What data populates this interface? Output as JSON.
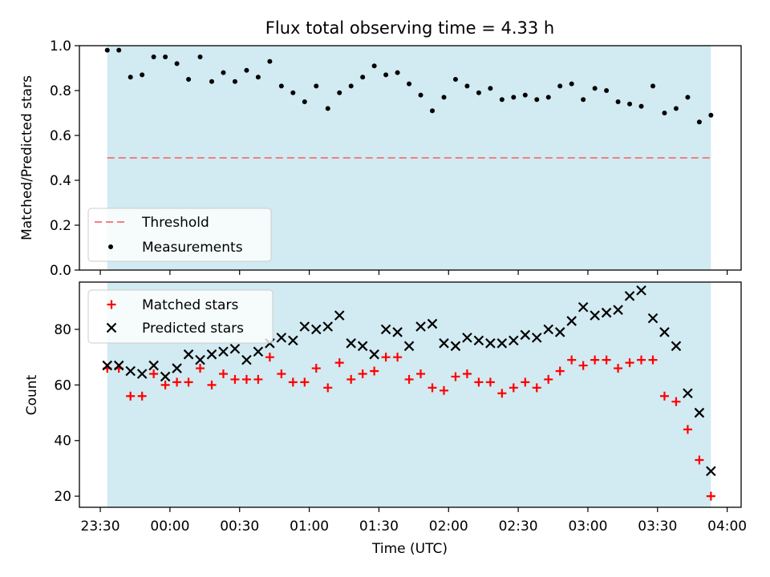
{
  "chart_data": [
    {
      "type": "scatter",
      "title": "Flux total observing time = 4.33 h",
      "ylabel": "Matched/Predicted stars",
      "ylim": [
        0,
        1.0
      ],
      "yticks": [
        "0.0",
        "0.2",
        "0.4",
        "0.6",
        "0.8",
        "1.0"
      ],
      "shaded_span": [
        "23:33",
        "03:53"
      ],
      "shade_color": "#add8e6",
      "threshold": 0.5,
      "threshold_color": "#f08080",
      "legend_position": "lower left",
      "series": [
        {
          "name": "Measurements",
          "color": "#000000",
          "marker": "dot",
          "values": [
            0.98,
            0.98,
            0.86,
            0.87,
            0.95,
            0.95,
            0.92,
            0.85,
            0.95,
            0.84,
            0.88,
            0.84,
            0.89,
            0.86,
            0.93,
            0.82,
            0.79,
            0.75,
            0.82,
            0.72,
            0.79,
            0.82,
            0.86,
            0.91,
            0.87,
            0.88,
            0.83,
            0.78,
            0.71,
            0.77,
            0.85,
            0.82,
            0.79,
            0.81,
            0.76,
            0.77,
            0.78,
            0.76,
            0.77,
            0.82,
            0.83,
            0.76,
            0.81,
            0.8,
            0.75,
            0.74,
            0.73,
            0.82,
            0.7,
            0.72,
            0.77,
            0.66,
            0.69
          ]
        }
      ],
      "legend": [
        "Threshold",
        "Measurements"
      ]
    },
    {
      "type": "scatter",
      "xlabel": "Time (UTC)",
      "ylabel": "Count",
      "ylim": [
        16,
        97
      ],
      "yticks": [
        "20",
        "40",
        "60",
        "80"
      ],
      "xticks": [
        "23:30",
        "00:00",
        "00:30",
        "01:00",
        "01:30",
        "02:00",
        "02:30",
        "03:00",
        "03:30",
        "04:00"
      ],
      "xlim": [
        "23:21",
        "04:06"
      ],
      "legend_position": "upper left",
      "x": [
        "23:33",
        "23:38",
        "23:43",
        "23:48",
        "23:53",
        "23:58",
        "00:03",
        "00:08",
        "00:13",
        "00:18",
        "00:23",
        "00:28",
        "00:33",
        "00:38",
        "00:43",
        "00:48",
        "00:53",
        "00:58",
        "01:03",
        "01:08",
        "01:13",
        "01:18",
        "01:23",
        "01:28",
        "01:33",
        "01:38",
        "01:43",
        "01:48",
        "01:53",
        "01:58",
        "02:03",
        "02:08",
        "02:13",
        "02:18",
        "02:23",
        "02:28",
        "02:33",
        "02:38",
        "02:43",
        "02:48",
        "02:53",
        "02:58",
        "03:03",
        "03:08",
        "03:13",
        "03:18",
        "03:23",
        "03:28",
        "03:33",
        "03:38",
        "03:43",
        "03:48",
        "03:53"
      ],
      "series": [
        {
          "name": "Matched stars",
          "color": "#ff0000",
          "marker": "plus",
          "values": [
            66,
            66,
            56,
            56,
            64,
            60,
            61,
            61,
            66,
            60,
            64,
            62,
            62,
            62,
            70,
            64,
            61,
            61,
            66,
            59,
            68,
            62,
            64,
            65,
            70,
            70,
            62,
            64,
            59,
            58,
            63,
            64,
            61,
            61,
            57,
            59,
            61,
            59,
            62,
            65,
            69,
            67,
            69,
            69,
            66,
            68,
            69,
            69,
            56,
            54,
            44,
            33,
            20
          ]
        },
        {
          "name": "Predicted stars",
          "color": "#000000",
          "marker": "x",
          "values": [
            67,
            67,
            65,
            64,
            67,
            63,
            66,
            71,
            69,
            71,
            72,
            73,
            69,
            72,
            75,
            77,
            76,
            81,
            80,
            81,
            85,
            75,
            74,
            71,
            80,
            79,
            74,
            81,
            82,
            75,
            74,
            77,
            76,
            75,
            75,
            76,
            78,
            77,
            80,
            79,
            83,
            88,
            85,
            86,
            87,
            92,
            94,
            84,
            79,
            74,
            57,
            50,
            29
          ]
        }
      ],
      "legend": [
        "Matched stars",
        "Predicted stars"
      ]
    }
  ]
}
